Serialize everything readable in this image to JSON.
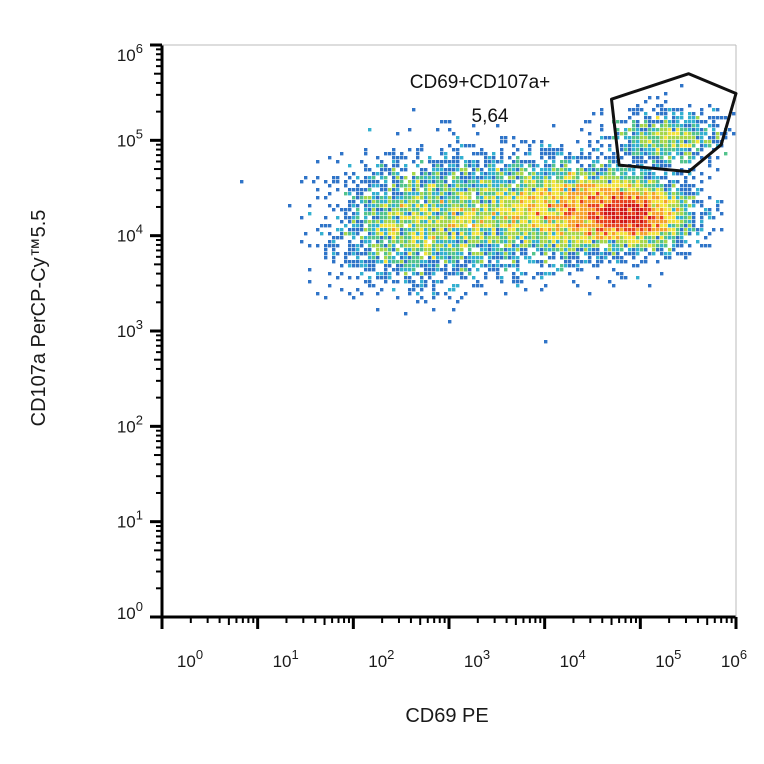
{
  "chart_data": {
    "type": "scatter",
    "xlabel": "CD69 PE",
    "ylabel": "CD107a PerCP-Cy™5.5",
    "x_scale": "log",
    "y_scale": "log",
    "xlim": [
      1,
      1000000
    ],
    "ylim": [
      1,
      1000000
    ],
    "x_ticks": [
      {
        "base": "10",
        "exp": "0"
      },
      {
        "base": "10",
        "exp": "1"
      },
      {
        "base": "10",
        "exp": "2"
      },
      {
        "base": "10",
        "exp": "3"
      },
      {
        "base": "10",
        "exp": "4"
      },
      {
        "base": "10",
        "exp": "5"
      },
      {
        "base": "10",
        "exp": "6"
      }
    ],
    "y_ticks": [
      {
        "base": "10",
        "exp": "0"
      },
      {
        "base": "10",
        "exp": "1"
      },
      {
        "base": "10",
        "exp": "2"
      },
      {
        "base": "10",
        "exp": "3"
      },
      {
        "base": "10",
        "exp": "4"
      },
      {
        "base": "10",
        "exp": "5"
      },
      {
        "base": "10",
        "exp": "6"
      }
    ],
    "gate": {
      "name": "CD69+CD107a+",
      "value": "5,64",
      "polygon": [
        [
          50000,
          270000
        ],
        [
          320000,
          500000
        ],
        [
          1000000,
          310000
        ],
        [
          700000,
          90000
        ],
        [
          320000,
          47000
        ],
        [
          60000,
          55000
        ]
      ]
    },
    "population_clusters": [
      {
        "x": 85000,
        "y": 16000,
        "spread_x": 0.28,
        "spread_y": 0.16,
        "count": 2600
      },
      {
        "x": 30000,
        "y": 20000,
        "spread_x": 0.45,
        "spread_y": 0.22,
        "count": 3000
      },
      {
        "x": 4000,
        "y": 17000,
        "spread_x": 0.65,
        "spread_y": 0.3,
        "count": 3000
      },
      {
        "x": 400,
        "y": 13000,
        "spread_x": 0.4,
        "spread_y": 0.32,
        "count": 1700
      },
      {
        "x": 200000,
        "y": 110000,
        "spread_x": 0.3,
        "spread_y": 0.14,
        "count": 700
      }
    ],
    "density_colors": [
      "#2b3a9a",
      "#2f74c8",
      "#33b0d0",
      "#52c38c",
      "#a6d64a",
      "#f2e23a",
      "#f6a12a",
      "#e8421f",
      "#d01818"
    ],
    "grid": false,
    "legend": "none"
  }
}
